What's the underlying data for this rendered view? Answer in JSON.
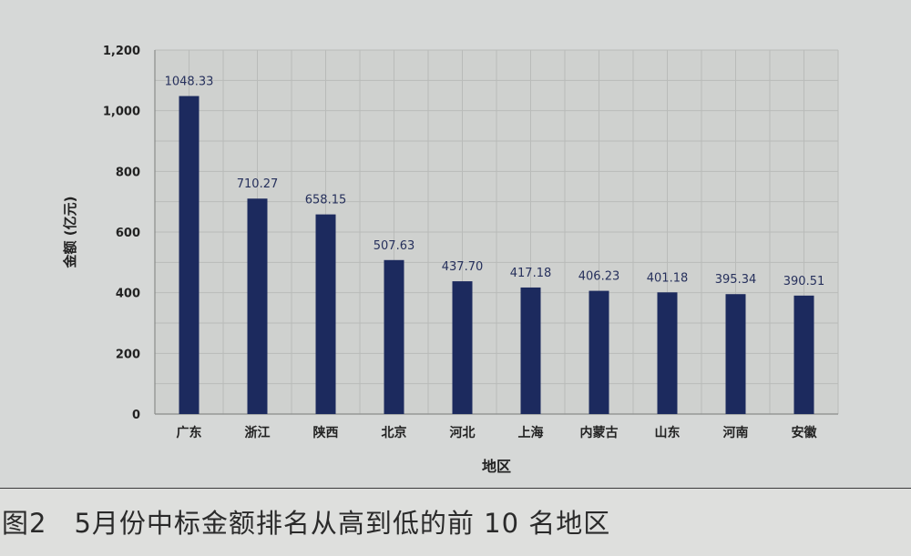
{
  "chart_data": {
    "type": "bar",
    "categories": [
      "广东",
      "浙江",
      "陕西",
      "北京",
      "河北",
      "上海",
      "内蒙古",
      "山东",
      "河南",
      "安徽"
    ],
    "values": [
      1048.33,
      710.27,
      658.15,
      507.63,
      437.7,
      417.18,
      406.23,
      401.18,
      395.34,
      390.51
    ],
    "data_labels": [
      "1048.33",
      "710.27",
      "658.15",
      "507.63",
      "437.70",
      "417.18",
      "406.23",
      "401.18",
      "395.34",
      "390.51"
    ],
    "xlabel": "地区",
    "ylabel": "金额 (亿元)",
    "ylim": [
      0,
      1200
    ],
    "yticks": [
      0,
      200,
      400,
      600,
      800,
      1000,
      1200
    ],
    "ytick_labels": [
      "0",
      "200",
      "400",
      "600",
      "800",
      "1,000",
      "1,200"
    ],
    "grid": true,
    "bar_color": "#1c2a5e",
    "plot_bg": "#cfd1cf"
  },
  "caption": "图2　5月份中标金额排名从高到低的前 10 名地区"
}
